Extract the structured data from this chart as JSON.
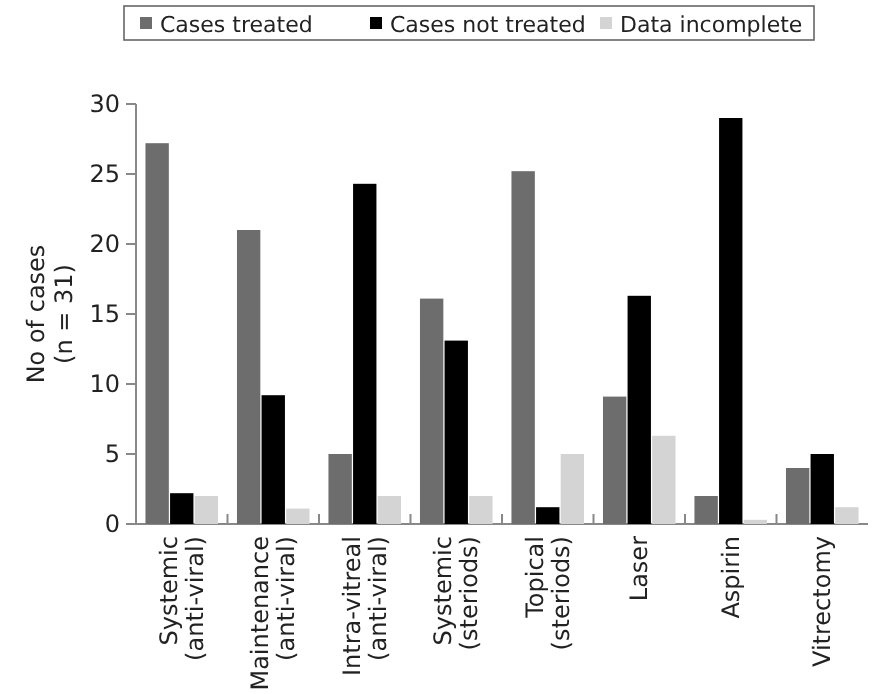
{
  "chart_data": {
    "type": "bar",
    "ylabel": "No of cases\n(n = 31)",
    "categories": [
      "Systemic\n(anti-viral)",
      "Maintenance\n(anti-viral)",
      "Intra-vitreal\n(anti-viral)",
      "Systemic\n(steriods)",
      "Topical\n(steriods)",
      "Laser",
      "Aspirin",
      "Vitrectomy"
    ],
    "series": [
      {
        "name": "Cases treated",
        "color": "#6d6d6d",
        "values": [
          27.2,
          21,
          5,
          16.1,
          25.2,
          9.1,
          2,
          4
        ]
      },
      {
        "name": "Cases not treated",
        "color": "#000000",
        "values": [
          2.2,
          9.2,
          24.3,
          13.1,
          1.2,
          16.3,
          29,
          5
        ]
      },
      {
        "name": "Data incomplete",
        "color": "#d4d4d4",
        "values": [
          2,
          1.1,
          2,
          2,
          5,
          6.3,
          0.3,
          1.2
        ]
      }
    ],
    "ylim": [
      0,
      30
    ],
    "yticks": [
      0,
      5,
      10,
      15,
      20,
      25,
      30
    ],
    "grid": false,
    "legend": "top"
  }
}
